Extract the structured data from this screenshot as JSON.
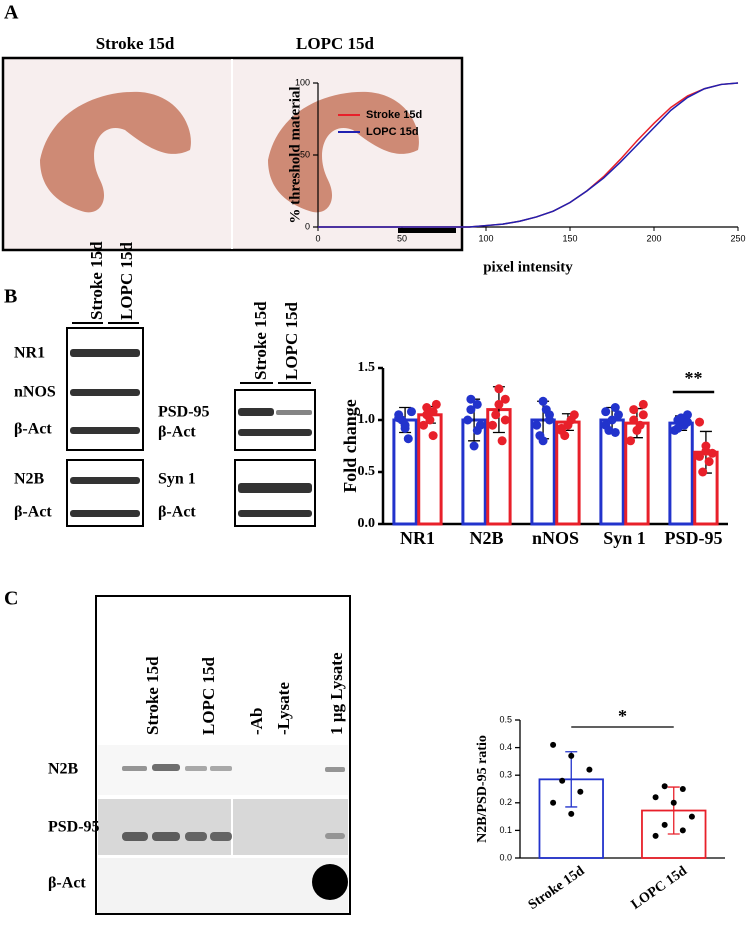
{
  "panel_labels": [
    "A",
    "B",
    "C"
  ],
  "panel_a": {
    "image_labels": [
      "Stroke 15d",
      "LOPC 15d"
    ]
  },
  "panel_b": {
    "left_lanes": [
      "Stroke 15d",
      "LOPC 15d"
    ],
    "left_rows": [
      "NR1",
      "nNOS",
      "β-Act",
      "N2B",
      "β-Act"
    ],
    "right_lanes": [
      "Stroke 15d",
      "LOPC 15d"
    ],
    "right_rows": [
      "PSD-95",
      "β-Act",
      "Syn 1",
      "β-Act"
    ]
  },
  "panel_c": {
    "lanes": [
      "Stroke 15d",
      "LOPC 15d",
      "-Ab",
      "-Lysate",
      "1 µg Lysate"
    ],
    "rows": [
      "N2B",
      "PSD-95",
      "β-Act"
    ]
  },
  "chart_data": [
    {
      "type": "line",
      "xlabel": "pixel intensity",
      "ylabel": "% threshold material",
      "x": [
        0,
        10,
        20,
        30,
        40,
        50,
        60,
        70,
        80,
        90,
        100,
        110,
        120,
        130,
        140,
        150,
        160,
        170,
        180,
        190,
        200,
        210,
        220,
        230,
        240,
        250
      ],
      "series": [
        {
          "name": "Stroke 15d",
          "color": "#e8202a",
          "values": [
            0,
            0,
            0,
            0,
            0,
            0,
            0,
            0,
            0,
            0,
            1,
            2,
            4,
            7,
            11,
            17,
            25,
            35,
            47,
            60,
            72,
            83,
            91,
            96,
            99,
            100
          ]
        },
        {
          "name": "LOPC 15d",
          "color": "#2020b0",
          "values": [
            0,
            0,
            0,
            0,
            0,
            0,
            0,
            0,
            0,
            0,
            1,
            2,
            4,
            7,
            11,
            17,
            25,
            34,
            45,
            57,
            69,
            81,
            90,
            96,
            99,
            100
          ]
        }
      ],
      "xlim": [
        0,
        250
      ],
      "xticks": [
        0,
        50,
        100,
        150,
        200,
        250
      ],
      "ylim": [
        0,
        100
      ],
      "yticks": [
        0,
        50,
        100
      ],
      "legend": "upper-left"
    },
    {
      "type": "bar",
      "ylabel": "Fold change",
      "categories": [
        "NR1",
        "N2B",
        "nNOS",
        "Syn 1",
        "PSD-95"
      ],
      "series": [
        {
          "name": "Stroke 15d",
          "color": "#2233cc",
          "values": [
            1.0,
            1.0,
            1.0,
            1.0,
            0.97
          ],
          "errors": [
            0.12,
            0.2,
            0.18,
            0.12,
            0.07
          ],
          "points": [
            [
              1.02,
              0.92,
              1.08,
              1.0,
              0.82,
              1.05,
              0.95
            ],
            [
              1.2,
              1.15,
              1.0,
              0.75,
              0.95,
              1.1,
              0.9
            ],
            [
              1.18,
              1.0,
              0.85,
              1.1,
              0.95,
              0.8,
              1.05
            ],
            [
              1.12,
              0.95,
              1.0,
              1.05,
              0.9,
              0.88,
              1.08
            ],
            [
              1.05,
              1.0,
              0.95,
              0.9,
              1.02,
              0.98,
              0.92
            ]
          ]
        },
        {
          "name": "LOPC 15d",
          "color": "#e8202a",
          "values": [
            1.05,
            1.1,
            0.98,
            0.97,
            0.69
          ],
          "errors": [
            0.08,
            0.22,
            0.08,
            0.14,
            0.2
          ],
          "points": [
            [
              1.12,
              1.08,
              0.95,
              1.0,
              1.15,
              1.05,
              0.85
            ],
            [
              1.3,
              1.2,
              1.05,
              0.8,
              0.95,
              1.15,
              1.0
            ],
            [
              1.0,
              0.9,
              0.95,
              1.05,
              0.85,
              1.0,
              0.92
            ],
            [
              1.15,
              1.0,
              0.95,
              0.8,
              0.9,
              1.05,
              1.1
            ],
            [
              0.98,
              0.75,
              0.68,
              0.5,
              0.6,
              0.65,
              0.7
            ]
          ]
        }
      ],
      "ylim": [
        0,
        1.5
      ],
      "yticks": [
        {
          "value": 0,
          "label": "0.0"
        },
        0.5,
        {
          "value": 1,
          "label": "1.0"
        },
        1.5
      ],
      "annotation": "**"
    },
    {
      "type": "bar",
      "ylabel": "N2B/PSD-95 ratio",
      "categories": [
        "Stroke 15d",
        "LOPC 15d"
      ],
      "values": [
        0.285,
        0.172
      ],
      "errors": [
        0.1,
        0.085
      ],
      "colors": [
        "#2233cc",
        "#e8202a"
      ],
      "points": [
        [
          0.41,
          0.37,
          0.32,
          0.28,
          0.24,
          0.2,
          0.16
        ],
        [
          0.26,
          0.25,
          0.22,
          0.2,
          0.15,
          0.12,
          0.1,
          0.08
        ]
      ],
      "ylim": [
        0,
        0.5
      ],
      "yticks": [
        {
          "value": 0,
          "label": "0.0"
        },
        0.1,
        0.2,
        0.3,
        0.4,
        0.5
      ],
      "annotation": "*"
    }
  ]
}
